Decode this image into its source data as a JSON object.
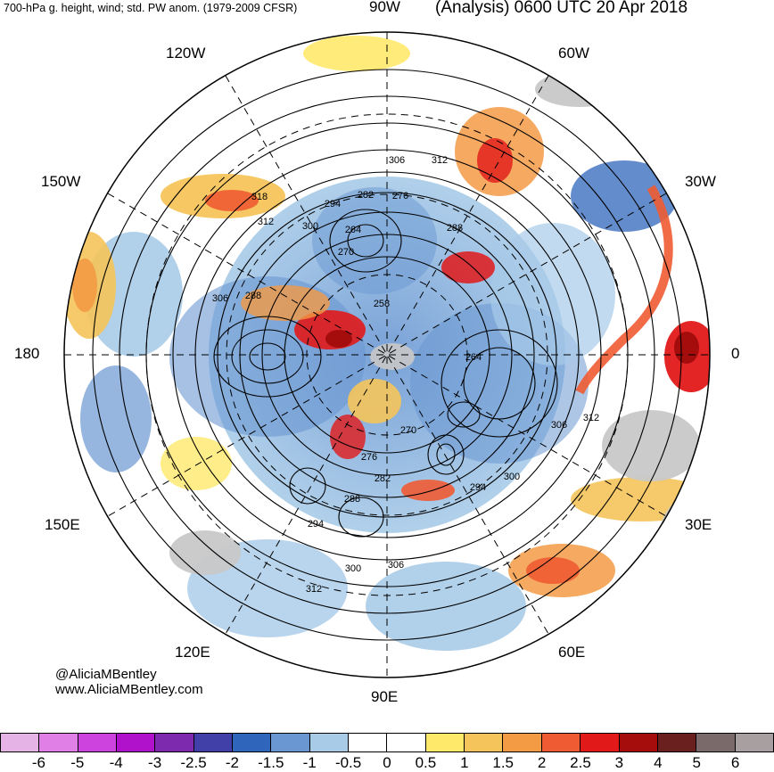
{
  "header": {
    "left_title": "700-hPa g. height, wind; std. PW anom. (1979-2009 CFSR)",
    "right_title": "(Analysis) 0600 UTC 20 Apr 2018"
  },
  "longitude_labels": {
    "w90": "90W",
    "w120": "120W",
    "w60": "60W",
    "w150": "150W",
    "w30": "30W",
    "e180": "180",
    "zero": "0",
    "e150": "150E",
    "e30": "30E",
    "e120": "120E",
    "e60": "60E",
    "e90": "90E"
  },
  "contour_labels": [
    "306",
    "312",
    "282",
    "276",
    "294",
    "264",
    "288",
    "300",
    "318",
    "312",
    "270",
    "306",
    "288",
    "258",
    "264",
    "306",
    "312",
    "270",
    "276",
    "282",
    "294",
    "300",
    "288",
    "294",
    "300",
    "306",
    "312"
  ],
  "credits": {
    "handle": "@AliciaMBentley",
    "website": "www.AliciaMBentley.com"
  },
  "colorbar": {
    "colors": [
      "#e6b3e6",
      "#e080e6",
      "#cc44dd",
      "#b012cc",
      "#7d2aaf",
      "#4040a8",
      "#2f66bb",
      "#6a97d2",
      "#a8cbe8",
      "#ffffff",
      "#ffffff",
      "#fee96a",
      "#f5c45a",
      "#f39a45",
      "#ef5b33",
      "#e11919",
      "#a50d0d",
      "#6b2020",
      "#7a6a6a",
      "#a8a0a0"
    ],
    "labels": [
      "-6",
      "-5",
      "-4",
      "-3",
      "-2.5",
      "-2",
      "-1.5",
      "-1",
      "-0.5",
      "0",
      "0.5",
      "1",
      "1.5",
      "2",
      "2.5",
      "3",
      "4",
      "5",
      "6"
    ]
  }
}
